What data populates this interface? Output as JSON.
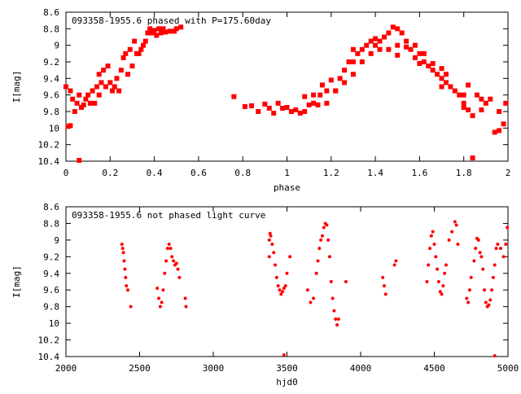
{
  "chart_data": [
    {
      "type": "scatter",
      "title": "093358-1955.6 phased with P=175.60day",
      "xlabel": "phase",
      "ylabel": "I[mag]",
      "xlim": [
        0,
        2
      ],
      "ylim": [
        10.4,
        8.6
      ],
      "y_inverted": true,
      "grid": false,
      "legend": "none",
      "marker": "filled-square",
      "xticks": [
        "0",
        "0.2",
        "0.4",
        "0.6",
        "0.8",
        "1",
        "1.2",
        "1.4",
        "1.6",
        "1.8",
        "2"
      ],
      "yticks": [
        "8.6",
        "8.8",
        "9",
        "9.2",
        "9.4",
        "9.6",
        "9.8",
        "10",
        "10.2",
        "10.4"
      ],
      "color": "#ff0000",
      "points": [
        [
          0.0,
          9.5
        ],
        [
          0.01,
          9.98
        ],
        [
          0.02,
          9.55
        ],
        [
          0.02,
          9.97
        ],
        [
          0.03,
          9.65
        ],
        [
          0.04,
          9.8
        ],
        [
          0.05,
          9.7
        ],
        [
          0.06,
          9.6
        ],
        [
          0.06,
          10.39
        ],
        [
          0.07,
          9.75
        ],
        [
          0.08,
          9.72
        ],
        [
          0.09,
          9.65
        ],
        [
          0.1,
          9.6
        ],
        [
          0.11,
          9.7
        ],
        [
          0.12,
          9.55
        ],
        [
          0.13,
          9.7
        ],
        [
          0.14,
          9.5
        ],
        [
          0.15,
          9.6
        ],
        [
          0.15,
          9.35
        ],
        [
          0.16,
          9.45
        ],
        [
          0.17,
          9.3
        ],
        [
          0.18,
          9.5
        ],
        [
          0.19,
          9.25
        ],
        [
          0.2,
          9.45
        ],
        [
          0.21,
          9.55
        ],
        [
          0.22,
          9.5
        ],
        [
          0.23,
          9.4
        ],
        [
          0.24,
          9.55
        ],
        [
          0.25,
          9.3
        ],
        [
          0.26,
          9.15
        ],
        [
          0.27,
          9.1
        ],
        [
          0.28,
          9.35
        ],
        [
          0.29,
          9.05
        ],
        [
          0.3,
          9.25
        ],
        [
          0.31,
          8.95
        ],
        [
          0.32,
          9.1
        ],
        [
          0.33,
          9.1
        ],
        [
          0.34,
          9.05
        ],
        [
          0.35,
          9.0
        ],
        [
          0.36,
          8.95
        ],
        [
          0.37,
          8.85
        ],
        [
          0.38,
          8.8
        ],
        [
          0.39,
          8.85
        ],
        [
          0.4,
          8.82
        ],
        [
          0.41,
          8.88
        ],
        [
          0.42,
          8.8
        ],
        [
          0.43,
          8.85
        ],
        [
          0.44,
          8.8
        ],
        [
          0.45,
          8.84
        ],
        [
          0.47,
          8.83
        ],
        [
          0.49,
          8.83
        ],
        [
          0.5,
          8.8
        ],
        [
          0.52,
          8.78
        ],
        [
          0.76,
          9.62
        ],
        [
          0.81,
          9.74
        ],
        [
          0.84,
          9.73
        ],
        [
          0.87,
          9.8
        ],
        [
          0.9,
          9.71
        ],
        [
          0.92,
          9.76
        ],
        [
          0.94,
          9.82
        ],
        [
          0.96,
          9.7
        ],
        [
          0.98,
          9.76
        ],
        [
          1.0,
          9.75
        ],
        [
          1.02,
          9.8
        ],
        [
          1.04,
          9.78
        ],
        [
          1.06,
          9.82
        ],
        [
          1.08,
          9.8
        ],
        [
          1.1,
          9.72
        ],
        [
          1.12,
          9.7
        ],
        [
          1.14,
          9.72
        ],
        [
          1.15,
          9.6
        ],
        [
          1.16,
          9.48
        ],
        [
          1.18,
          9.7
        ],
        [
          1.2,
          9.42
        ],
        [
          1.22,
          9.55
        ],
        [
          1.24,
          9.4
        ],
        [
          1.26,
          9.3
        ],
        [
          1.28,
          9.2
        ],
        [
          1.3,
          9.2
        ],
        [
          1.32,
          9.1
        ],
        [
          1.34,
          9.05
        ],
        [
          1.36,
          9.0
        ],
        [
          1.38,
          8.95
        ],
        [
          1.4,
          8.92
        ],
        [
          1.42,
          8.95
        ],
        [
          1.44,
          8.9
        ],
        [
          1.46,
          8.85
        ],
        [
          1.48,
          8.78
        ],
        [
          1.5,
          8.8
        ],
        [
          1.52,
          8.85
        ],
        [
          1.54,
          8.95
        ],
        [
          1.56,
          9.05
        ],
        [
          1.58,
          9.15
        ],
        [
          1.6,
          9.1
        ],
        [
          1.62,
          9.2
        ],
        [
          1.64,
          9.25
        ],
        [
          1.66,
          9.3
        ],
        [
          1.68,
          9.35
        ],
        [
          1.7,
          9.4
        ],
        [
          1.72,
          9.45
        ],
        [
          1.74,
          9.5
        ],
        [
          1.76,
          9.55
        ],
        [
          1.78,
          9.6
        ],
        [
          1.8,
          9.7
        ],
        [
          1.82,
          9.78
        ],
        [
          1.84,
          9.85
        ],
        [
          1.86,
          9.6
        ],
        [
          1.88,
          9.65
        ],
        [
          1.9,
          9.7
        ],
        [
          1.92,
          9.65
        ],
        [
          1.94,
          10.05
        ],
        [
          1.96,
          10.03
        ],
        [
          1.98,
          9.95
        ],
        [
          1.99,
          9.7
        ],
        [
          1.84,
          10.36
        ],
        [
          1.82,
          9.48
        ],
        [
          1.8,
          9.6
        ],
        [
          1.72,
          9.35
        ],
        [
          1.7,
          9.28
        ],
        [
          1.66,
          9.22
        ],
        [
          1.62,
          9.1
        ],
        [
          1.58,
          9.0
        ],
        [
          1.54,
          9.02
        ],
        [
          1.5,
          9.0
        ],
        [
          1.46,
          9.05
        ],
        [
          1.42,
          9.05
        ],
        [
          1.38,
          9.1
        ],
        [
          1.34,
          9.2
        ],
        [
          1.3,
          9.35
        ],
        [
          1.26,
          9.45
        ],
        [
          1.22,
          9.55
        ],
        [
          1.18,
          9.55
        ],
        [
          1.12,
          9.6
        ],
        [
          1.08,
          9.62
        ],
        [
          1.3,
          9.05
        ],
        [
          1.4,
          9.0
        ],
        [
          1.5,
          9.12
        ],
        [
          1.6,
          9.22
        ],
        [
          1.7,
          9.5
        ],
        [
          1.8,
          9.75
        ],
        [
          1.88,
          9.78
        ],
        [
          1.96,
          9.8
        ]
      ]
    },
    {
      "type": "scatter",
      "title": "093358-1955.6 not phased light curve",
      "xlabel": "hjd0",
      "ylabel": "I[mag]",
      "xlim": [
        2000,
        5000
      ],
      "ylim": [
        10.4,
        8.6
      ],
      "y_inverted": true,
      "grid": false,
      "legend": "none",
      "marker": "filled-dot",
      "xticks": [
        "2000",
        "2500",
        "3000",
        "3500",
        "4000",
        "4500",
        "5000"
      ],
      "yticks": [
        "8.6",
        "8.8",
        "9",
        "9.2",
        "9.4",
        "9.6",
        "9.8",
        "10",
        "10.2",
        "10.4"
      ],
      "color": "#ff0000",
      "points": [
        [
          2380,
          9.05
        ],
        [
          2385,
          9.1
        ],
        [
          2390,
          9.15
        ],
        [
          2395,
          9.25
        ],
        [
          2400,
          9.35
        ],
        [
          2405,
          9.45
        ],
        [
          2410,
          9.55
        ],
        [
          2420,
          9.6
        ],
        [
          2440,
          9.8
        ],
        [
          2620,
          9.58
        ],
        [
          2630,
          9.7
        ],
        [
          2640,
          9.8
        ],
        [
          2650,
          9.75
        ],
        [
          2660,
          9.6
        ],
        [
          2670,
          9.4
        ],
        [
          2680,
          9.25
        ],
        [
          2690,
          9.1
        ],
        [
          2700,
          9.05
        ],
        [
          2710,
          9.1
        ],
        [
          2720,
          9.2
        ],
        [
          2730,
          9.25
        ],
        [
          2740,
          9.3
        ],
        [
          2750,
          9.28
        ],
        [
          2760,
          9.35
        ],
        [
          2770,
          9.45
        ],
        [
          2810,
          9.7
        ],
        [
          2815,
          9.8
        ],
        [
          3380,
          9.0
        ],
        [
          3385,
          8.92
        ],
        [
          3390,
          8.95
        ],
        [
          3400,
          9.05
        ],
        [
          3410,
          9.15
        ],
        [
          3420,
          9.3
        ],
        [
          3430,
          9.45
        ],
        [
          3440,
          9.55
        ],
        [
          3450,
          9.6
        ],
        [
          3460,
          9.65
        ],
        [
          3470,
          9.62
        ],
        [
          3480,
          9.58
        ],
        [
          3490,
          9.55
        ],
        [
          3500,
          9.4
        ],
        [
          3520,
          9.2
        ],
        [
          3380,
          9.2
        ],
        [
          3480,
          10.38
        ],
        [
          3640,
          9.6
        ],
        [
          3660,
          9.75
        ],
        [
          3680,
          9.7
        ],
        [
          3700,
          9.4
        ],
        [
          3710,
          9.25
        ],
        [
          3720,
          9.1
        ],
        [
          3730,
          9.0
        ],
        [
          3740,
          8.95
        ],
        [
          3750,
          8.85
        ],
        [
          3760,
          8.8
        ],
        [
          3770,
          8.82
        ],
        [
          3780,
          9.0
        ],
        [
          3790,
          9.2
        ],
        [
          3800,
          9.5
        ],
        [
          3810,
          9.7
        ],
        [
          3820,
          9.85
        ],
        [
          3830,
          9.95
        ],
        [
          3840,
          10.02
        ],
        [
          3850,
          9.95
        ],
        [
          3900,
          9.5
        ],
        [
          4150,
          9.45
        ],
        [
          4160,
          9.55
        ],
        [
          4170,
          9.65
        ],
        [
          4230,
          9.3
        ],
        [
          4240,
          9.25
        ],
        [
          4450,
          9.5
        ],
        [
          4460,
          9.3
        ],
        [
          4470,
          9.1
        ],
        [
          4480,
          8.95
        ],
        [
          4490,
          8.9
        ],
        [
          4500,
          9.05
        ],
        [
          4510,
          9.2
        ],
        [
          4520,
          9.35
        ],
        [
          4530,
          9.5
        ],
        [
          4540,
          9.62
        ],
        [
          4550,
          9.65
        ],
        [
          4560,
          9.55
        ],
        [
          4570,
          9.4
        ],
        [
          4580,
          9.3
        ],
        [
          4600,
          9.0
        ],
        [
          4620,
          8.9
        ],
        [
          4640,
          8.78
        ],
        [
          4650,
          8.82
        ],
        [
          4660,
          9.05
        ],
        [
          4720,
          9.7
        ],
        [
          4730,
          9.75
        ],
        [
          4740,
          9.6
        ],
        [
          4750,
          9.45
        ],
        [
          4770,
          9.25
        ],
        [
          4780,
          9.1
        ],
        [
          4790,
          8.98
        ],
        [
          4800,
          9.0
        ],
        [
          4810,
          9.15
        ],
        [
          4820,
          9.2
        ],
        [
          4830,
          9.35
        ],
        [
          4840,
          9.6
        ],
        [
          4850,
          9.75
        ],
        [
          4860,
          9.8
        ],
        [
          4870,
          9.78
        ],
        [
          4880,
          9.72
        ],
        [
          4890,
          9.6
        ],
        [
          4900,
          9.45
        ],
        [
          4910,
          9.3
        ],
        [
          4920,
          9.1
        ],
        [
          4930,
          9.05
        ],
        [
          4950,
          9.1
        ],
        [
          4970,
          9.2
        ],
        [
          4985,
          9.05
        ],
        [
          4995,
          8.85
        ],
        [
          4910,
          10.39
        ]
      ]
    }
  ]
}
